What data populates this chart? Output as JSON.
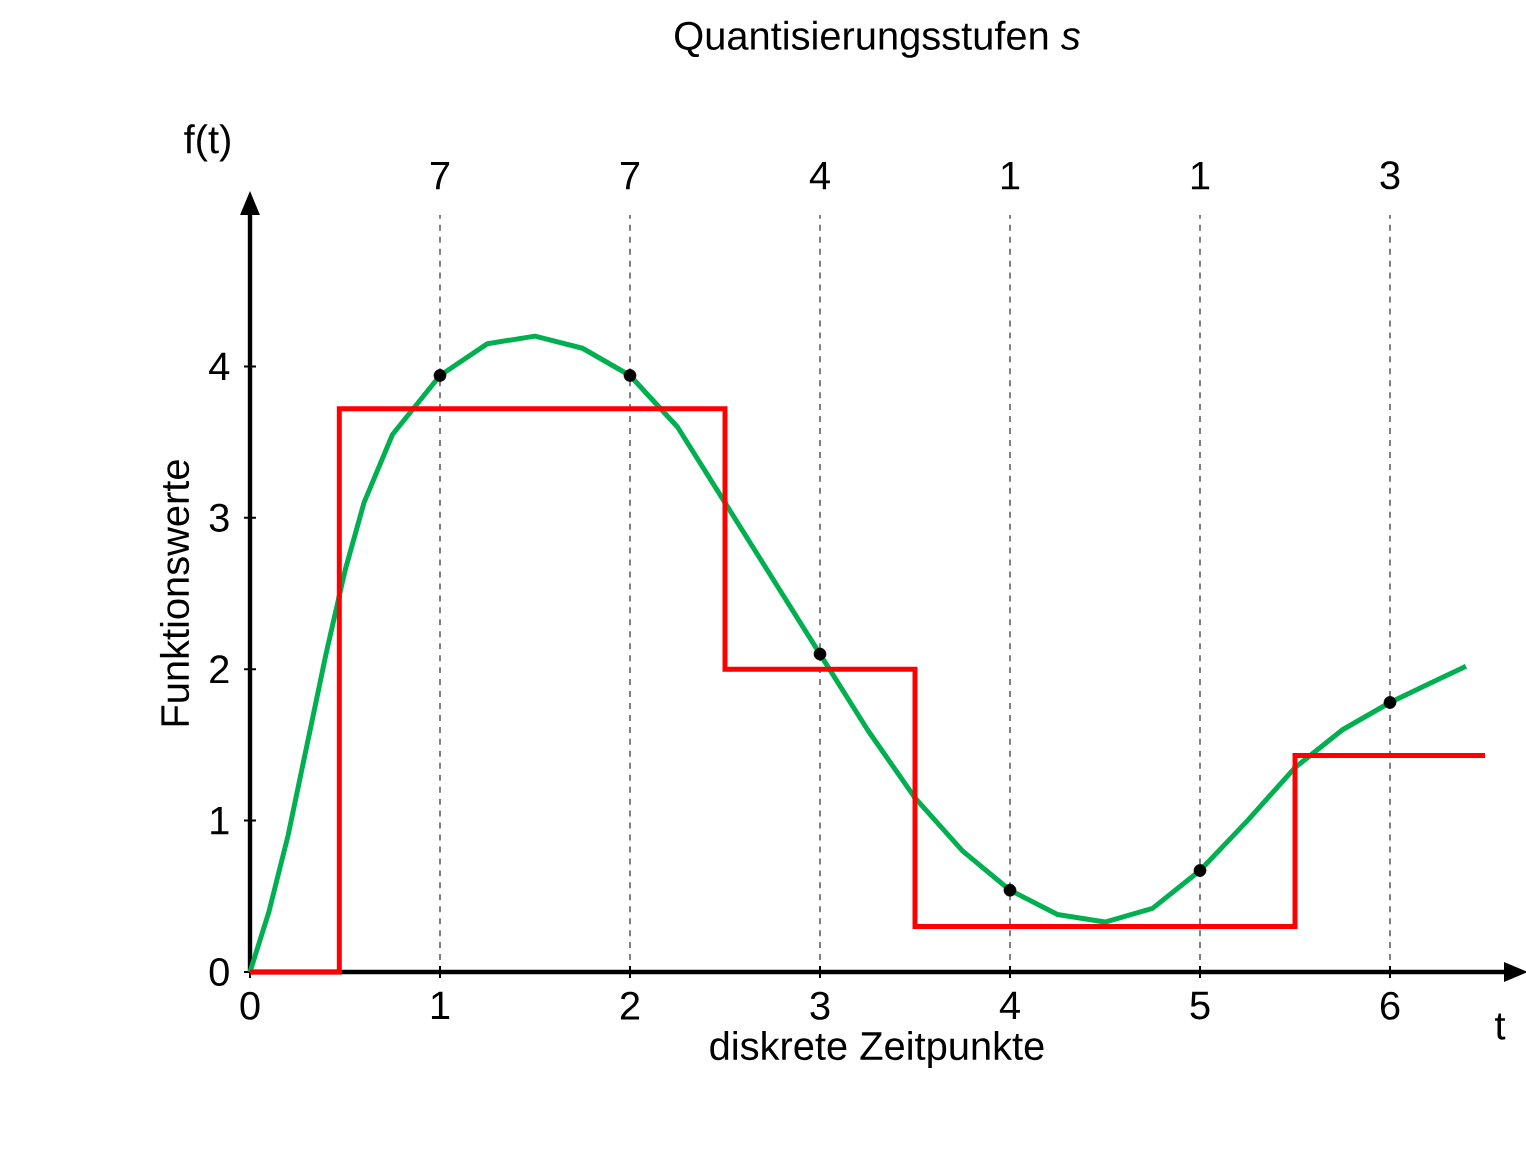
{
  "chart_data": {
    "type": "line",
    "title": "Quantisierungsstufen *s*",
    "xlabel": "diskrete Zeitpunkte",
    "ylabel": "Funktionswerte",
    "xlim": [
      0,
      6.6
    ],
    "ylim": [
      0,
      5
    ],
    "xticks": [
      0,
      1,
      2,
      3,
      4,
      5,
      6
    ],
    "yticks": [
      0,
      1,
      2,
      3,
      4
    ],
    "grid": "x",
    "annotations": [
      "t",
      "f(t)",
      "7",
      "7",
      "4",
      "1",
      "1",
      "3"
    ],
    "series": [
      {
        "color": "#00b050",
        "x": [
          0,
          0.1,
          0.2,
          0.3,
          0.4,
          0.5,
          0.6,
          0.75,
          1,
          1.25,
          1.5,
          1.75,
          2,
          2.25,
          2.5,
          2.75,
          3,
          3.25,
          3.5,
          3.75,
          4,
          4.25,
          4.5,
          4.75,
          5,
          5.25,
          5.5,
          5.75,
          6,
          6.2,
          6.4
        ],
        "values": [
          0,
          0.4,
          0.9,
          1.5,
          2.1,
          2.65,
          3.1,
          3.55,
          3.94,
          4.15,
          4.2,
          4.12,
          3.94,
          3.6,
          3.1,
          2.6,
          2.1,
          1.6,
          1.15,
          0.8,
          0.54,
          0.38,
          0.33,
          0.42,
          0.67,
          1.0,
          1.35,
          1.6,
          1.78,
          1.9,
          2.02
        ]
      },
      {
        "type": "step",
        "color": "#ff0000",
        "x": [
          0,
          0.47,
          2.5,
          3.5,
          5.5,
          6.5
        ],
        "values": [
          0,
          3.72,
          2.0,
          0.3,
          1.43,
          1.43
        ]
      },
      {
        "type": "scatter",
        "color": "#000000",
        "marker": "circle",
        "x": [
          1,
          2,
          3,
          4,
          5,
          6
        ],
        "values": [
          3.94,
          3.94,
          2.1,
          0.54,
          0.67,
          1.78
        ]
      }
    ]
  }
}
